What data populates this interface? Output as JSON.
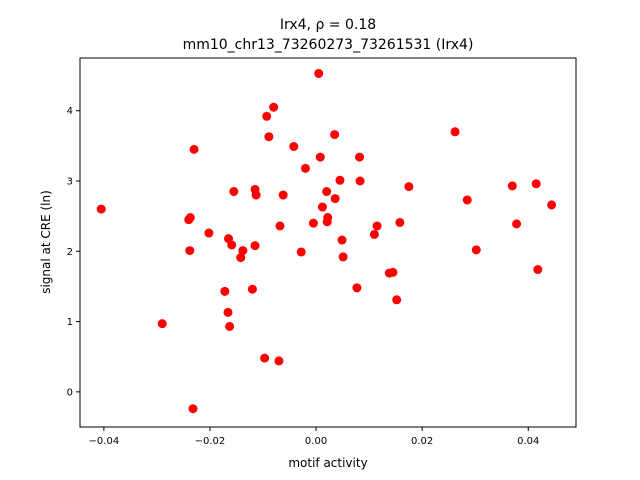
{
  "chart_data": {
    "type": "scatter",
    "title_line1": "Irx4, ρ = 0.18",
    "title_line2": "mm10_chr13_73260273_73261531 (Irx4)",
    "xlabel": "motif activity",
    "ylabel": "signal at CRE (ln)",
    "xlim": [
      -0.0445,
      0.049
    ],
    "ylim": [
      -0.5,
      4.75
    ],
    "xticks": [
      -0.04,
      -0.02,
      0.0,
      0.02,
      0.04
    ],
    "xtick_labels": [
      "−0.04",
      "−0.02",
      "0.00",
      "0.02",
      "0.04"
    ],
    "yticks": [
      0,
      1,
      2,
      3,
      4
    ],
    "ytick_labels": [
      "0",
      "1",
      "2",
      "3",
      "4"
    ],
    "grid": false,
    "marker_color": "#ff0000",
    "points": [
      {
        "x": -0.0405,
        "y": 2.6
      },
      {
        "x": -0.029,
        "y": 0.97
      },
      {
        "x": -0.024,
        "y": 2.45
      },
      {
        "x": -0.0237,
        "y": 2.48
      },
      {
        "x": -0.0238,
        "y": 2.01
      },
      {
        "x": -0.023,
        "y": 3.45
      },
      {
        "x": -0.0232,
        "y": -0.24
      },
      {
        "x": -0.0202,
        "y": 2.26
      },
      {
        "x": -0.0172,
        "y": 1.43
      },
      {
        "x": -0.0166,
        "y": 1.13
      },
      {
        "x": -0.0165,
        "y": 2.18
      },
      {
        "x": -0.0163,
        "y": 0.93
      },
      {
        "x": -0.0159,
        "y": 2.09
      },
      {
        "x": -0.0155,
        "y": 2.85
      },
      {
        "x": -0.0142,
        "y": 1.91
      },
      {
        "x": -0.0138,
        "y": 2.01
      },
      {
        "x": -0.012,
        "y": 1.46
      },
      {
        "x": -0.0115,
        "y": 2.88
      },
      {
        "x": -0.0113,
        "y": 2.8
      },
      {
        "x": -0.0115,
        "y": 2.08
      },
      {
        "x": -0.0093,
        "y": 3.92
      },
      {
        "x": -0.0089,
        "y": 3.63
      },
      {
        "x": -0.0097,
        "y": 0.48
      },
      {
        "x": -0.008,
        "y": 4.05
      },
      {
        "x": -0.0068,
        "y": 2.36
      },
      {
        "x": -0.007,
        "y": 0.44
      },
      {
        "x": -0.0062,
        "y": 2.8
      },
      {
        "x": -0.0042,
        "y": 3.49
      },
      {
        "x": -0.0028,
        "y": 1.99
      },
      {
        "x": -0.002,
        "y": 3.18
      },
      {
        "x": -0.0005,
        "y": 2.4
      },
      {
        "x": 0.0005,
        "y": 4.53
      },
      {
        "x": 0.0008,
        "y": 3.34
      },
      {
        "x": 0.0012,
        "y": 2.63
      },
      {
        "x": 0.002,
        "y": 2.85
      },
      {
        "x": 0.0022,
        "y": 2.48
      },
      {
        "x": 0.0021,
        "y": 2.42
      },
      {
        "x": 0.0035,
        "y": 3.66
      },
      {
        "x": 0.0036,
        "y": 2.75
      },
      {
        "x": 0.0045,
        "y": 3.01
      },
      {
        "x": 0.0049,
        "y": 2.16
      },
      {
        "x": 0.0051,
        "y": 1.92
      },
      {
        "x": 0.0077,
        "y": 1.48
      },
      {
        "x": 0.0082,
        "y": 3.34
      },
      {
        "x": 0.0083,
        "y": 3.0
      },
      {
        "x": 0.011,
        "y": 2.24
      },
      {
        "x": 0.0115,
        "y": 2.36
      },
      {
        "x": 0.0138,
        "y": 1.69
      },
      {
        "x": 0.0145,
        "y": 1.7
      },
      {
        "x": 0.0152,
        "y": 1.31
      },
      {
        "x": 0.0158,
        "y": 2.41
      },
      {
        "x": 0.0175,
        "y": 2.92
      },
      {
        "x": 0.0262,
        "y": 3.7
      },
      {
        "x": 0.0285,
        "y": 2.73
      },
      {
        "x": 0.0302,
        "y": 2.02
      },
      {
        "x": 0.037,
        "y": 2.93
      },
      {
        "x": 0.0378,
        "y": 2.39
      },
      {
        "x": 0.0415,
        "y": 2.96
      },
      {
        "x": 0.0418,
        "y": 1.74
      },
      {
        "x": 0.0444,
        "y": 2.66
      }
    ]
  }
}
